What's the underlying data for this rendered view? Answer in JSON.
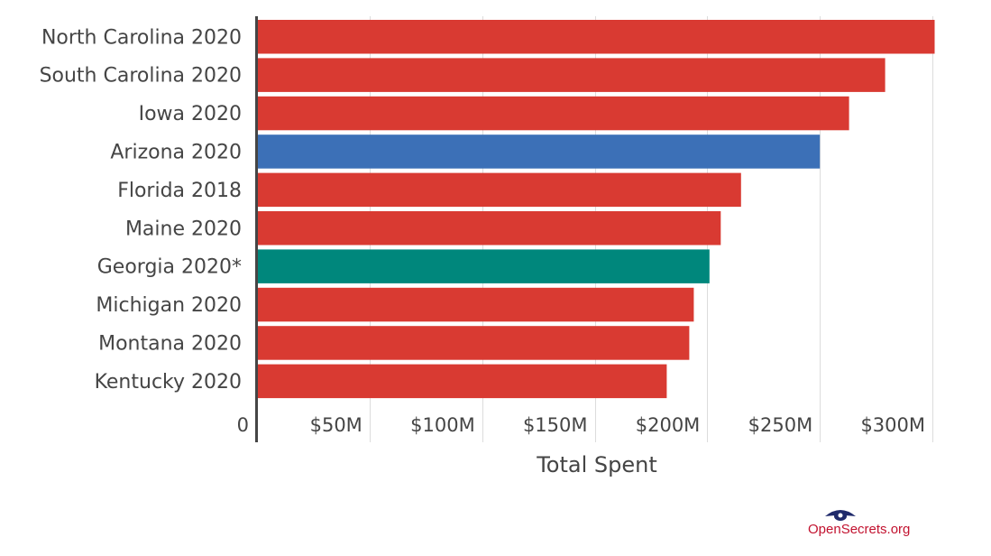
{
  "chart_data": {
    "type": "bar",
    "orientation": "horizontal",
    "categories": [
      "North Carolina 2020",
      "South Carolina 2020",
      "Iowa 2020",
      "Arizona 2020",
      "Florida 2018",
      "Maine 2020",
      "Georgia 2020*",
      "Michigan 2020",
      "Montana 2020",
      "Kentucky 2020"
    ],
    "values": [
      301,
      279,
      263,
      250,
      215,
      206,
      201,
      194,
      192,
      182
    ],
    "value_unit": "$M",
    "bar_colors": [
      "#d93a32",
      "#d93a32",
      "#d93a32",
      "#3c70b7",
      "#d93a32",
      "#d93a32",
      "#00877c",
      "#d93a32",
      "#d93a32",
      "#d93a32"
    ],
    "xlabel": "Total Spent",
    "ylabel": "",
    "title": "",
    "xlim": [
      0,
      302
    ],
    "x_ticks": [
      0,
      50,
      100,
      150,
      200,
      250,
      300
    ],
    "x_tick_labels": [
      "0",
      "$50M",
      "$100M",
      "$150M",
      "$200M",
      "$250M",
      "$300M"
    ],
    "grid": true,
    "legend": "none"
  },
  "branding": {
    "logo_text": "OpenSecrets.org",
    "logo_color": "#c2122f",
    "logo_icon": "eye-icon"
  }
}
